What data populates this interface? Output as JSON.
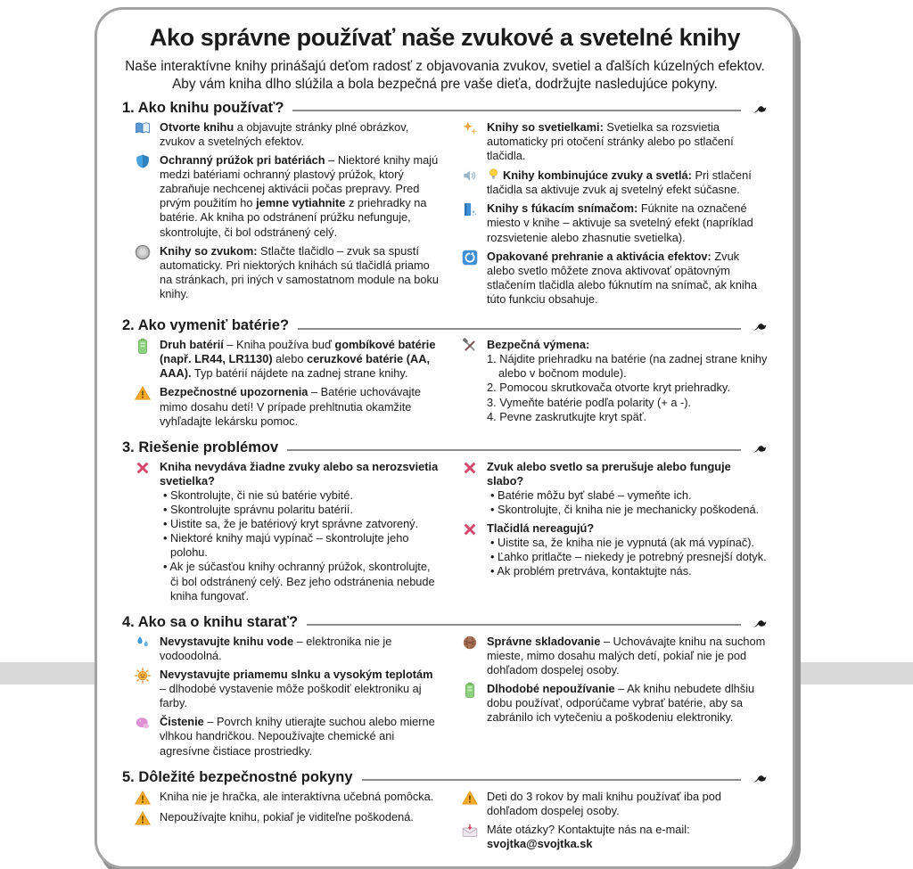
{
  "page": {
    "title": "Ako správne používať naše zvukové a svetelné knihy",
    "intro_lines": [
      "Naše interaktívne knihy prinášajú deťom radosť z objavovania zvukov, svetiel a ďalších kúzelných efektov.",
      "Aby vám kniha dlho slúžila a bola bezpečná pre vaše dieťa, dodržujte nasledujúce pokyny."
    ]
  },
  "sections": [
    {
      "heading": "1. Ako knihu používať?",
      "left": [
        {
          "icon": "open-book-icon",
          "segments": [
            {
              "b": 1,
              "t": "Otvorte knihu"
            },
            {
              "b": 0,
              "t": " a objavujte stránky plné obrázkov, zvukov a svetelných efektov."
            }
          ]
        },
        {
          "icon": "shield-icon",
          "segments": [
            {
              "b": 1,
              "t": "Ochranný prúžok pri batériách"
            },
            {
              "b": 0,
              "t": " – Niektoré knihy majú medzi batériami ochranný plastový prúžok, ktorý zabraňuje nechcenej aktivácii počas prepravy. Pred prvým použitím ho "
            },
            {
              "b": 1,
              "t": "jemne vytiahnite"
            },
            {
              "b": 0,
              "t": " z priehradky na batérie. Ak kniha po odstránení prúžku nefunguje, skontrolujte, či bol odstránený celý."
            }
          ]
        },
        {
          "icon": "sound-button-icon",
          "segments": [
            {
              "b": 1,
              "t": "Knihy so zvukom:"
            },
            {
              "b": 0,
              "t": " Stlačte tlačidlo – zvuk sa spustí automaticky. Pri niektorých knihách sú tlačidlá priamo na stránkach, pri iných v samostatnom module na boku knihy."
            }
          ]
        }
      ],
      "right": [
        {
          "icon": "sparkles-icon",
          "segments": [
            {
              "b": 1,
              "t": "Knihy so svetielkami:"
            },
            {
              "b": 0,
              "t": " Svetielka sa rozsvietia automaticky pri otočení stránky alebo po stlačení tlačidla."
            }
          ]
        },
        {
          "icon": "speaker-icon",
          "inline_icon": "bulb-icon",
          "segments": [
            {
              "b": 1,
              "t": "Knihy kombinujúce zvuky a svetlá:"
            },
            {
              "b": 0,
              "t": " Pri stlačení tlačidla sa aktivuje zvuk aj svetelný efekt súčasne."
            }
          ]
        },
        {
          "icon": "blow-sensor-icon",
          "segments": [
            {
              "b": 1,
              "t": "Knihy s fúkacím snímačom:"
            },
            {
              "b": 0,
              "t": " Fúknite na označené miesto v knihe – aktivuje sa svetelný efekt (napríklad rozsvietenie alebo zhasnutie svetielka)."
            }
          ]
        },
        {
          "icon": "replay-icon",
          "segments": [
            {
              "b": 1,
              "t": "Opakované prehranie a aktivácia efektov:"
            },
            {
              "b": 0,
              "t": " Zvuk alebo svetlo môžete znova aktivovať opätovným stlačením tlačidla alebo fúknutím na snímač, ak kniha túto funkciu obsahuje."
            }
          ]
        }
      ]
    },
    {
      "heading": "2. Ako vymeniť batérie?",
      "left": [
        {
          "icon": "battery-icon",
          "segments": [
            {
              "b": 1,
              "t": "Druh batérií"
            },
            {
              "b": 0,
              "t": " – Kniha používa buď "
            },
            {
              "b": 1,
              "t": "gombíkové batérie (např. LR44, LR1130)"
            },
            {
              "b": 0,
              "t": " alebo "
            },
            {
              "b": 1,
              "t": "ceruzkové batérie (AA, AAA)."
            },
            {
              "b": 0,
              "t": " Typ batérií nájdete na zadnej strane knihy."
            }
          ]
        },
        {
          "icon": "warning-icon",
          "segments": [
            {
              "b": 1,
              "t": "Bezpečnostné upozornenia"
            },
            {
              "b": 0,
              "t": " – Batérie uchovávajte mimo dosahu detí! V prípade prehltnutia okamžite vyhľadajte lekársku pomoc."
            }
          ]
        }
      ],
      "right": [
        {
          "icon": "tools-icon",
          "title": "Bezpečná výmena:",
          "steps": [
            "1. Nájdite priehradku na batérie (na zadnej strane knihy alebo v bočnom module).",
            "2. Pomocou skrutkovača otvorte kryt priehradky.",
            "3. Vymeňte batérie podľa polarity (+ a -).",
            "4. Pevne zaskrutkujte kryt späť."
          ]
        }
      ]
    },
    {
      "heading": "3. Riešenie problémov",
      "left": [
        {
          "icon": "error-x-icon",
          "title": "Kniha nevydáva žiadne zvuky alebo sa nerozsvietia svetielka?",
          "bullets": [
            "Skontrolujte, či nie sú batérie vybité.",
            "Skontrolujte správnu polaritu batérií.",
            "Uistite sa, že je batériový kryt správne zatvorený.",
            "Niektoré knihy majú vypínač – skontrolujte jeho polohu.",
            "Ak je súčasťou knihy ochranný prúžok, skontrolujte, či bol odstránený celý. Bez jeho odstránenia nebude kniha fungovať."
          ]
        }
      ],
      "right": [
        {
          "icon": "error-x-icon",
          "title": "Zvuk alebo svetlo sa prerušuje alebo funguje slabo?",
          "bullets": [
            "Batérie môžu byť slabé – vymeňte ich.",
            "Skontrolujte, či kniha nie je mechanicky poškodená."
          ]
        },
        {
          "icon": "error-x-icon",
          "title": "Tlačidlá nereagujú?",
          "bullets": [
            "Uistite sa, že kniha nie je vypnutá (ak má vypínač).",
            "Ľahko pritlačte – niekedy je potrebný presnejší dotyk.",
            "Ak problém pretrváva, kontaktujte nás."
          ]
        }
      ]
    },
    {
      "heading": "4. Ako sa o knihu starať?",
      "left": [
        {
          "icon": "water-drops-icon",
          "segments": [
            {
              "b": 1,
              "t": "Nevystavujte knihu vode"
            },
            {
              "b": 0,
              "t": " – elektronika nie je vodoodolná."
            }
          ]
        },
        {
          "icon": "sun-face-icon",
          "segments": [
            {
              "b": 1,
              "t": "Nevystavujte priamemu slnku a vysokým teplotám"
            },
            {
              "b": 0,
              "t": " – dlhodobé vystavenie môže poškodiť elektroniku aj farby."
            }
          ]
        },
        {
          "icon": "sponge-icon",
          "segments": [
            {
              "b": 1,
              "t": "Čistenie"
            },
            {
              "b": 0,
              "t": " – Povrch knihy utierajte suchou alebo mierne vlhkou handričkou. Nepoužívajte chemické ani agresívne čistiace prostriedky."
            }
          ]
        }
      ],
      "right": [
        {
          "icon": "storage-box-icon",
          "segments": [
            {
              "b": 1,
              "t": "Správne skladovanie"
            },
            {
              "b": 0,
              "t": " – Uchovávajte knihu na suchom mieste, mimo dosahu malých detí, pokiaľ nie je pod dohľadom dospelej osoby."
            }
          ]
        },
        {
          "icon": "battery-icon",
          "segments": [
            {
              "b": 1,
              "t": "Dlhodobé nepoužívanie"
            },
            {
              "b": 0,
              "t": " – Ak knihu nebudete dlhšiu dobu používať, odporúčame vybrať batérie, aby sa zabránilo ich vytečeniu a poškodeniu elektroniky."
            }
          ]
        }
      ]
    },
    {
      "heading": "5. Dôležité bezpečnostné pokyny",
      "left": [
        {
          "icon": "warning-icon",
          "segments": [
            {
              "b": 0,
              "t": "Kniha nie je hračka, ale interaktívna učebná pomôcka."
            }
          ]
        },
        {
          "icon": "warning-icon",
          "segments": [
            {
              "b": 0,
              "t": "Nepoužívajte knihu, pokiaľ je viditeľne poškodená."
            }
          ]
        }
      ],
      "right": [
        {
          "icon": "warning-icon",
          "segments": [
            {
              "b": 0,
              "t": "Deti do 3 rokov by mali knihu používať iba pod dohľadom dospelej osoby."
            }
          ]
        },
        {
          "icon": "email-icon",
          "segments": [
            {
              "b": 0,
              "t": "Máte otázky? Kontaktujte nás na e-mail: "
            },
            {
              "b": 1,
              "t": "svojtka@svojtka.sk"
            }
          ]
        }
      ]
    }
  ],
  "colors": {
    "accent_red_x": "#d6456a",
    "warning_orange": "#f7a928",
    "battery_green": "#8ed17c",
    "book_blue": "#4597dc",
    "shadow_gray": "#8f8f8f"
  }
}
